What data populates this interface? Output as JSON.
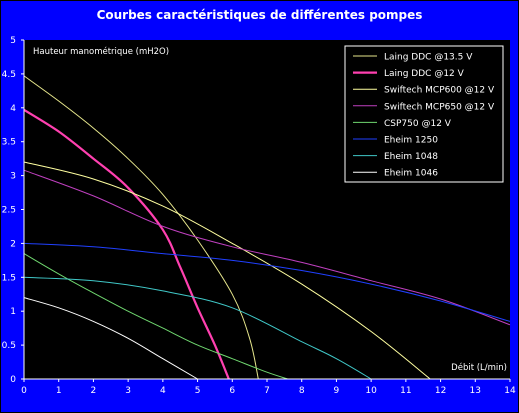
{
  "chart_data": {
    "type": "line",
    "title": "Courbes caractéristiques de différentes pompes",
    "ylabel": "Hauteur manométrique (mH2O)",
    "xlabel": "Débit (L/min)",
    "xlim": [
      0,
      14
    ],
    "ylim": [
      0,
      5
    ],
    "xticks": [
      0,
      1,
      2,
      3,
      4,
      5,
      6,
      7,
      8,
      9,
      10,
      11,
      12,
      13,
      14
    ],
    "yticks": [
      0,
      0.5,
      1,
      1.5,
      2,
      2.5,
      3,
      3.5,
      4,
      4.5,
      5
    ],
    "ytick_labels": [
      "0",
      "0.5",
      "1",
      "1.5",
      "2",
      "2.5",
      "3",
      "3.5",
      "4",
      "4.5",
      "5"
    ],
    "grid": false,
    "legend_position": "top-right",
    "series": [
      {
        "name": "Laing DDC @13.5 V",
        "color": "#e6e68c",
        "width": 1,
        "points": [
          [
            0,
            4.47
          ],
          [
            1,
            4.1
          ],
          [
            2,
            3.7
          ],
          [
            3,
            3.25
          ],
          [
            4,
            2.72
          ],
          [
            5,
            2.05
          ],
          [
            6,
            1.25
          ],
          [
            6.5,
            0.6
          ],
          [
            6.75,
            0
          ]
        ]
      },
      {
        "name": "Laing DDC @12 V",
        "color": "#ff40b0",
        "width": 2.2,
        "points": [
          [
            0,
            3.97
          ],
          [
            1,
            3.65
          ],
          [
            2,
            3.25
          ],
          [
            3,
            2.82
          ],
          [
            4,
            2.2
          ],
          [
            4.5,
            1.65
          ],
          [
            5,
            1.05
          ],
          [
            5.5,
            0.5
          ],
          [
            5.9,
            0
          ]
        ]
      },
      {
        "name": "Swiftech MCP600 @12 V",
        "color": "#ffffa0",
        "width": 1,
        "points": [
          [
            0,
            3.2
          ],
          [
            2,
            2.95
          ],
          [
            4,
            2.55
          ],
          [
            6,
            2.0
          ],
          [
            8,
            1.4
          ],
          [
            10,
            0.7
          ],
          [
            11.7,
            0
          ]
        ]
      },
      {
        "name": "Swiftech MCP650 @12 V",
        "color": "#c040c0",
        "width": 1,
        "points": [
          [
            0,
            3.08
          ],
          [
            2,
            2.7
          ],
          [
            4,
            2.25
          ],
          [
            6,
            1.95
          ],
          [
            8,
            1.72
          ],
          [
            10,
            1.45
          ],
          [
            12,
            1.18
          ],
          [
            14,
            0.8
          ]
        ]
      },
      {
        "name": "CSP750 @12 V",
        "color": "#70d870",
        "width": 1,
        "points": [
          [
            0,
            1.85
          ],
          [
            1,
            1.55
          ],
          [
            2,
            1.27
          ],
          [
            3,
            1.0
          ],
          [
            4,
            0.75
          ],
          [
            5,
            0.5
          ],
          [
            6,
            0.3
          ],
          [
            7,
            0.1
          ],
          [
            7.6,
            0
          ]
        ]
      },
      {
        "name": "Eheim 1250",
        "color": "#2040ff",
        "width": 1,
        "points": [
          [
            0,
            2.0
          ],
          [
            2,
            1.95
          ],
          [
            4,
            1.85
          ],
          [
            6,
            1.75
          ],
          [
            8,
            1.6
          ],
          [
            10,
            1.4
          ],
          [
            12,
            1.15
          ],
          [
            14,
            0.85
          ]
        ]
      },
      {
        "name": "Eheim 1048",
        "color": "#40c8c8",
        "width": 1,
        "points": [
          [
            0,
            1.5
          ],
          [
            2,
            1.45
          ],
          [
            4,
            1.3
          ],
          [
            6,
            1.05
          ],
          [
            8,
            0.55
          ],
          [
            9,
            0.3
          ],
          [
            10,
            0
          ]
        ]
      },
      {
        "name": "Eheim 1046",
        "color": "#ffffff",
        "width": 1,
        "points": [
          [
            0,
            1.2
          ],
          [
            1,
            1.05
          ],
          [
            2,
            0.85
          ],
          [
            3,
            0.6
          ],
          [
            4,
            0.3
          ],
          [
            5,
            0
          ]
        ]
      }
    ]
  }
}
